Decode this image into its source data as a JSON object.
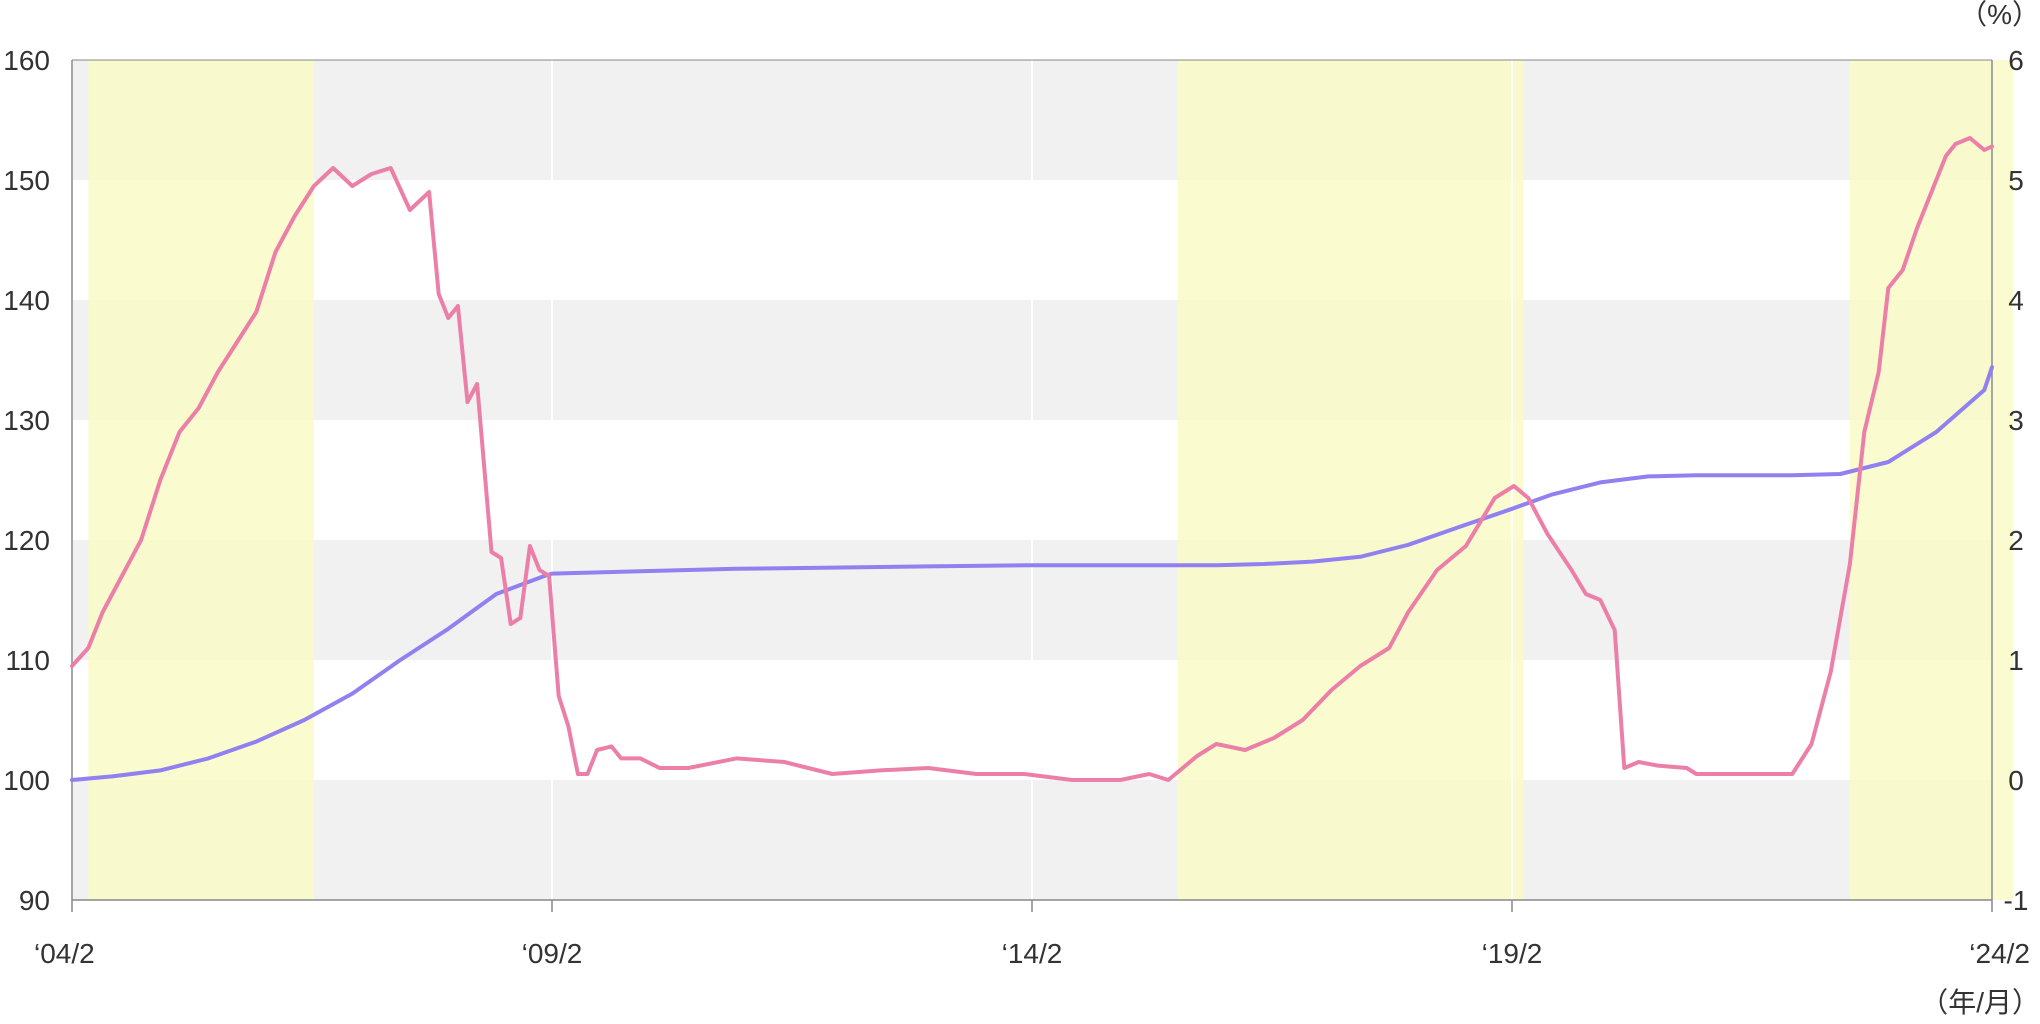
{
  "chart_data": {
    "type": "line",
    "title": "",
    "xlabel": "（年/月）",
    "ylabel_left": "",
    "ylabel_right": "（%）",
    "x_tick_labels": [
      "‘04/2",
      "‘09/2",
      "‘14/2",
      "‘19/2",
      "‘24/2"
    ],
    "left_axis": {
      "ylim": [
        90,
        160
      ],
      "ticks": [
        "90",
        "100",
        "110",
        "120",
        "130",
        "140",
        "150",
        "160"
      ]
    },
    "right_axis": {
      "ylim": [
        -1,
        6
      ],
      "ticks": [
        "-1",
        "0",
        "1",
        "2",
        "3",
        "4",
        "5",
        "6"
      ]
    },
    "grid": true,
    "legend": "none",
    "highlighted_periods": [
      {
        "start": 2004.25,
        "end": 2006.6
      },
      {
        "start": 2015.6,
        "end": 2019.2
      },
      {
        "start": 2022.6,
        "end": 2024.3
      }
    ],
    "series": [
      {
        "axis": "left",
        "color": "#9080f0",
        "points": [
          [
            2004.08,
            100.0
          ],
          [
            2004.5,
            100.3
          ],
          [
            2005.0,
            100.8
          ],
          [
            2005.5,
            101.8
          ],
          [
            2006.0,
            103.2
          ],
          [
            2006.5,
            105.0
          ],
          [
            2007.0,
            107.2
          ],
          [
            2007.5,
            110.0
          ],
          [
            2008.0,
            112.6
          ],
          [
            2008.5,
            115.5
          ],
          [
            2009.0,
            117.0
          ],
          [
            2009.08,
            117.2
          ],
          [
            2010.0,
            117.4
          ],
          [
            2011.0,
            117.6
          ],
          [
            2012.0,
            117.7
          ],
          [
            2013.0,
            117.8
          ],
          [
            2014.08,
            117.9
          ],
          [
            2015.0,
            117.9
          ],
          [
            2016.0,
            117.9
          ],
          [
            2016.5,
            118.0
          ],
          [
            2017.0,
            118.2
          ],
          [
            2017.5,
            118.6
          ],
          [
            2018.0,
            119.6
          ],
          [
            2018.5,
            121.0
          ],
          [
            2019.08,
            122.6
          ],
          [
            2019.5,
            123.8
          ],
          [
            2020.0,
            124.8
          ],
          [
            2020.5,
            125.3
          ],
          [
            2021.0,
            125.4
          ],
          [
            2021.5,
            125.4
          ],
          [
            2022.0,
            125.4
          ],
          [
            2022.5,
            125.5
          ],
          [
            2023.0,
            126.5
          ],
          [
            2023.5,
            129.0
          ],
          [
            2024.0,
            132.5
          ],
          [
            2024.08,
            134.4
          ]
        ]
      },
      {
        "axis": "right",
        "color": "#ec7fa8",
        "points": [
          [
            2004.08,
            0.95
          ],
          [
            2004.25,
            1.1
          ],
          [
            2004.4,
            1.4
          ],
          [
            2004.6,
            1.7
          ],
          [
            2004.8,
            2.0
          ],
          [
            2005.0,
            2.5
          ],
          [
            2005.2,
            2.9
          ],
          [
            2005.4,
            3.1
          ],
          [
            2005.6,
            3.4
          ],
          [
            2005.8,
            3.65
          ],
          [
            2006.0,
            3.9
          ],
          [
            2006.2,
            4.4
          ],
          [
            2006.4,
            4.7
          ],
          [
            2006.6,
            4.95
          ],
          [
            2006.8,
            5.1
          ],
          [
            2007.0,
            4.95
          ],
          [
            2007.2,
            5.05
          ],
          [
            2007.4,
            5.1
          ],
          [
            2007.6,
            4.75
          ],
          [
            2007.8,
            4.9
          ],
          [
            2007.9,
            4.05
          ],
          [
            2008.0,
            3.85
          ],
          [
            2008.1,
            3.95
          ],
          [
            2008.2,
            3.15
          ],
          [
            2008.3,
            3.3
          ],
          [
            2008.45,
            1.9
          ],
          [
            2008.55,
            1.85
          ],
          [
            2008.65,
            1.3
          ],
          [
            2008.75,
            1.35
          ],
          [
            2008.85,
            1.95
          ],
          [
            2008.95,
            1.75
          ],
          [
            2009.05,
            1.7
          ],
          [
            2009.15,
            0.7
          ],
          [
            2009.25,
            0.45
          ],
          [
            2009.35,
            0.05
          ],
          [
            2009.45,
            0.05
          ],
          [
            2009.55,
            0.25
          ],
          [
            2009.7,
            0.28
          ],
          [
            2009.8,
            0.18
          ],
          [
            2010.0,
            0.18
          ],
          [
            2010.2,
            0.1
          ],
          [
            2010.5,
            0.1
          ],
          [
            2011.0,
            0.18
          ],
          [
            2011.5,
            0.15
          ],
          [
            2012.0,
            0.05
          ],
          [
            2012.5,
            0.08
          ],
          [
            2013.0,
            0.1
          ],
          [
            2013.5,
            0.05
          ],
          [
            2014.0,
            0.05
          ],
          [
            2014.5,
            0.0
          ],
          [
            2015.0,
            0.0
          ],
          [
            2015.3,
            0.05
          ],
          [
            2015.5,
            0.0
          ],
          [
            2015.8,
            0.2
          ],
          [
            2016.0,
            0.3
          ],
          [
            2016.3,
            0.25
          ],
          [
            2016.6,
            0.35
          ],
          [
            2016.9,
            0.5
          ],
          [
            2017.2,
            0.75
          ],
          [
            2017.5,
            0.95
          ],
          [
            2017.8,
            1.1
          ],
          [
            2018.0,
            1.4
          ],
          [
            2018.3,
            1.75
          ],
          [
            2018.6,
            1.95
          ],
          [
            2018.9,
            2.35
          ],
          [
            2019.1,
            2.45
          ],
          [
            2019.25,
            2.35
          ],
          [
            2019.45,
            2.05
          ],
          [
            2019.7,
            1.75
          ],
          [
            2019.85,
            1.55
          ],
          [
            2020.0,
            1.5
          ],
          [
            2020.15,
            1.25
          ],
          [
            2020.25,
            0.1
          ],
          [
            2020.4,
            0.15
          ],
          [
            2020.6,
            0.12
          ],
          [
            2020.9,
            0.1
          ],
          [
            2021.0,
            0.05
          ],
          [
            2021.3,
            0.05
          ],
          [
            2021.6,
            0.05
          ],
          [
            2022.0,
            0.05
          ],
          [
            2022.2,
            0.3
          ],
          [
            2022.4,
            0.9
          ],
          [
            2022.6,
            1.8
          ],
          [
            2022.75,
            2.9
          ],
          [
            2022.9,
            3.4
          ],
          [
            2023.0,
            4.1
          ],
          [
            2023.15,
            4.25
          ],
          [
            2023.3,
            4.6
          ],
          [
            2023.45,
            4.9
          ],
          [
            2023.6,
            5.2
          ],
          [
            2023.7,
            5.3
          ],
          [
            2023.85,
            5.35
          ],
          [
            2024.0,
            5.25
          ],
          [
            2024.08,
            5.28
          ]
        ]
      }
    ]
  },
  "colors": {
    "band_gray": "#f1f1f1",
    "band_highlight": "#fafac8",
    "axis": "#888888",
    "grid_white": "#ffffff"
  }
}
